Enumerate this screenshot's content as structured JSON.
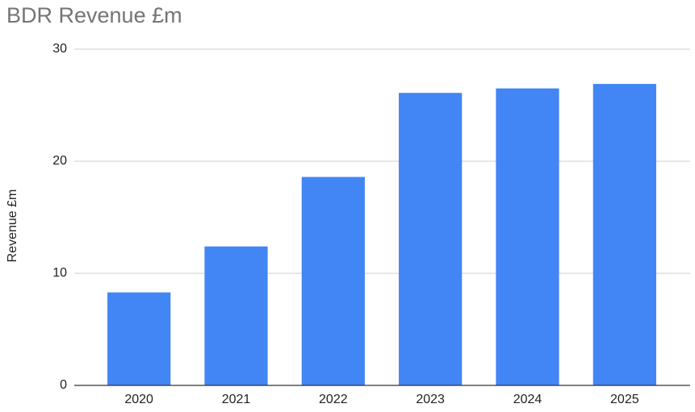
{
  "chart_data": {
    "type": "bar",
    "title": "BDR Revenue £m",
    "y_label": "Revenue £m",
    "categories": [
      "2020",
      "2021",
      "2022",
      "2023",
      "2024",
      "2025"
    ],
    "values": [
      8.3,
      12.4,
      18.6,
      26.1,
      26.5,
      26.9
    ],
    "color": "#4285f4",
    "ylim": [
      0,
      30
    ],
    "yticks": [
      0,
      10,
      20,
      30
    ],
    "grid": true
  }
}
